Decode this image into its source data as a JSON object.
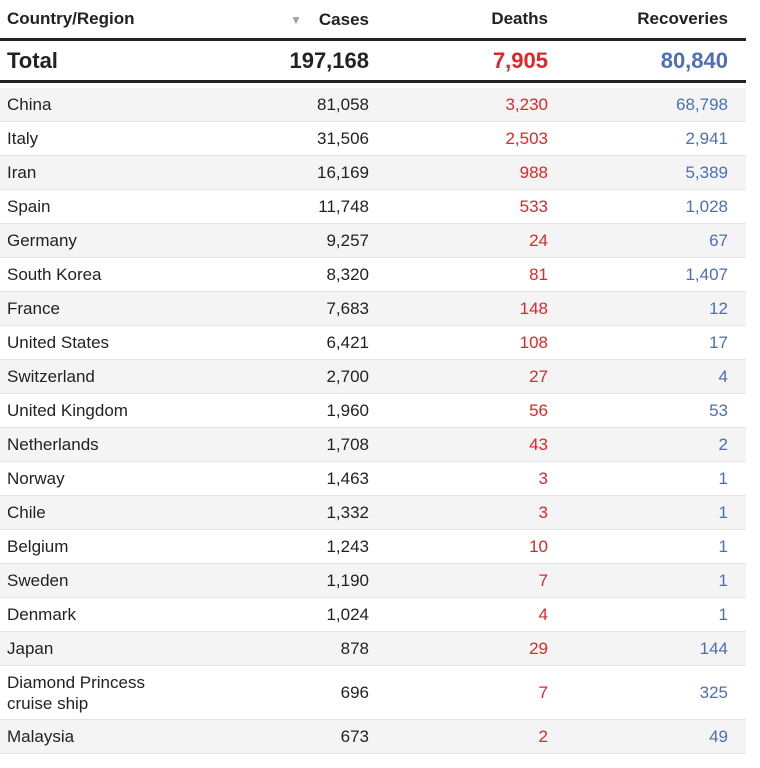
{
  "header": {
    "country": "Country/Region",
    "cases": "Cases",
    "deaths": "Deaths",
    "recoveries": "Recoveries",
    "sort_icon": "sort-down-triangle-icon"
  },
  "total": {
    "label": "Total",
    "cases": "197,168",
    "deaths": "7,905",
    "recoveries": "80,840"
  },
  "colors": {
    "deaths": "#e0262a",
    "recoveries": "#4e6fb3"
  },
  "rows": [
    {
      "country": "China",
      "cases": "81,058",
      "deaths": "3,230",
      "recoveries": "68,798"
    },
    {
      "country": "Italy",
      "cases": "31,506",
      "deaths": "2,503",
      "recoveries": "2,941"
    },
    {
      "country": "Iran",
      "cases": "16,169",
      "deaths": "988",
      "recoveries": "5,389"
    },
    {
      "country": "Spain",
      "cases": "11,748",
      "deaths": "533",
      "recoveries": "1,028"
    },
    {
      "country": "Germany",
      "cases": "9,257",
      "deaths": "24",
      "recoveries": "67"
    },
    {
      "country": "South Korea",
      "cases": "8,320",
      "deaths": "81",
      "recoveries": "1,407"
    },
    {
      "country": "France",
      "cases": "7,683",
      "deaths": "148",
      "recoveries": "12"
    },
    {
      "country": "United States",
      "cases": "6,421",
      "deaths": "108",
      "recoveries": "17"
    },
    {
      "country": "Switzerland",
      "cases": "2,700",
      "deaths": "27",
      "recoveries": "4"
    },
    {
      "country": "United Kingdom",
      "cases": "1,960",
      "deaths": "56",
      "recoveries": "53"
    },
    {
      "country": "Netherlands",
      "cases": "1,708",
      "deaths": "43",
      "recoveries": "2"
    },
    {
      "country": "Norway",
      "cases": "1,463",
      "deaths": "3",
      "recoveries": "1"
    },
    {
      "country": "Chile",
      "cases": "1,332",
      "deaths": "3",
      "recoveries": "1"
    },
    {
      "country": "Belgium",
      "cases": "1,243",
      "deaths": "10",
      "recoveries": "1"
    },
    {
      "country": "Sweden",
      "cases": "1,190",
      "deaths": "7",
      "recoveries": "1"
    },
    {
      "country": "Denmark",
      "cases": "1,024",
      "deaths": "4",
      "recoveries": "1"
    },
    {
      "country": "Japan",
      "cases": "878",
      "deaths": "29",
      "recoveries": "144"
    },
    {
      "country": "Diamond Princess cruise ship",
      "cases": "696",
      "deaths": "7",
      "recoveries": "325"
    },
    {
      "country": "Malaysia",
      "cases": "673",
      "deaths": "2",
      "recoveries": "49"
    }
  ]
}
